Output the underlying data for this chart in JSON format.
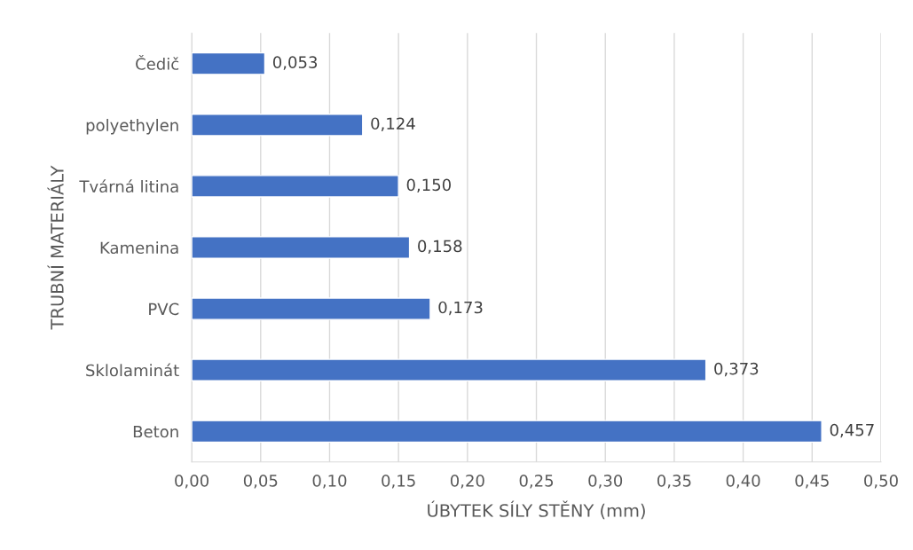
{
  "chart_data": {
    "type": "bar",
    "orientation": "horizontal",
    "categories": [
      "Čedič",
      "polyethylen",
      "Tvárná litina",
      "Kamenina",
      "PVC",
      "Sklolaminát",
      "Beton"
    ],
    "values": [
      0.053,
      0.124,
      0.15,
      0.158,
      0.173,
      0.373,
      0.457
    ],
    "value_labels": [
      "0,053",
      "0,124",
      "0,150",
      "0,158",
      "0,173",
      "0,373",
      "0,457"
    ],
    "color": "#4472c4",
    "xlabel": "ÚBYTEK SÍLY STĚNY (mm)",
    "ylabel": "TRUBNÍ MATERIÁLY",
    "xlim": [
      0,
      0.5
    ],
    "xticks": [
      {
        "value": 0,
        "label": "0,00"
      },
      {
        "value": 0.05,
        "label": "0,05"
      },
      {
        "value": 0.1,
        "label": "0,10"
      },
      {
        "value": 0.15,
        "label": "0,15"
      },
      {
        "value": 0.2,
        "label": "0,20"
      },
      {
        "value": 0.25,
        "label": "0,25"
      },
      {
        "value": 0.3,
        "label": "0,30"
      },
      {
        "value": 0.35,
        "label": "0,35"
      },
      {
        "value": 0.4,
        "label": "0,40"
      },
      {
        "value": 0.45,
        "label": "0,45"
      },
      {
        "value": 0.5,
        "label": "0,50"
      }
    ],
    "grid": "x"
  }
}
